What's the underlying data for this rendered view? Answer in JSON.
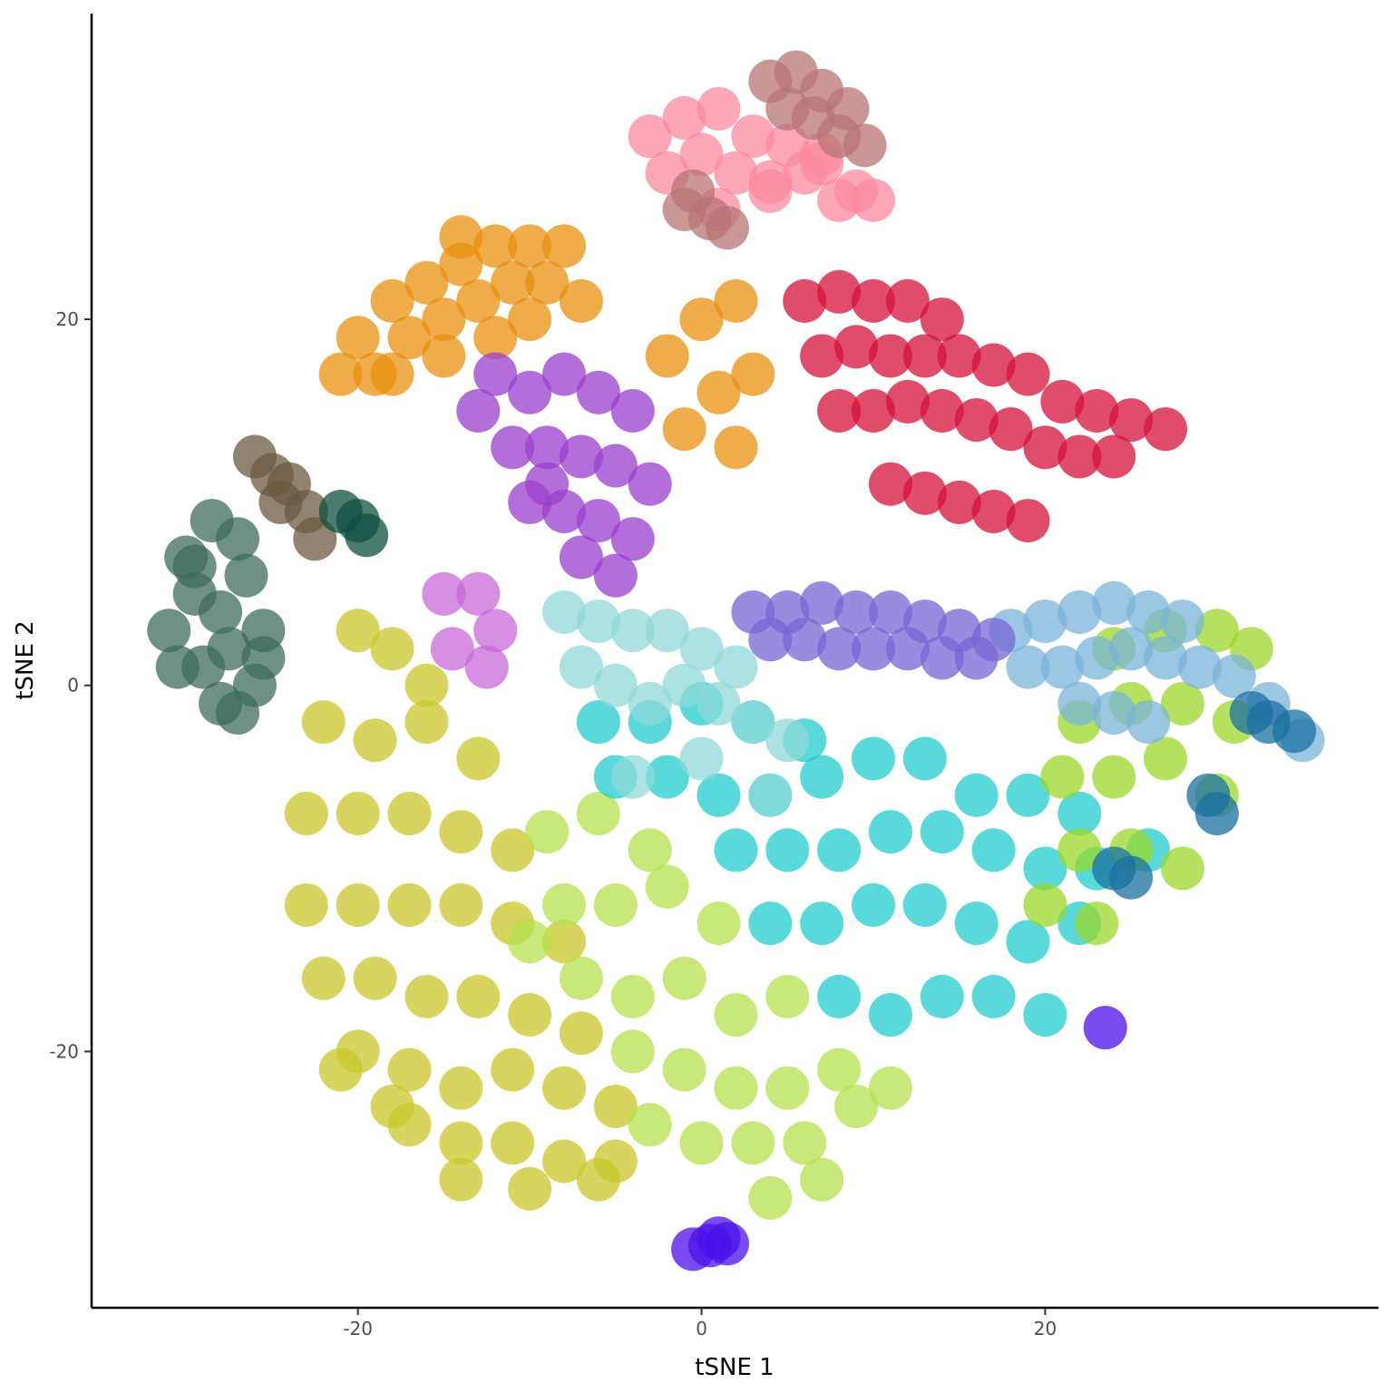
{
  "chart_data": {
    "type": "scatter",
    "x_label": "tSNE 1",
    "y_label": "tSNE 2",
    "xlim": [
      -35.5,
      39.4
    ],
    "ylim": [
      -34.0,
      36.7
    ],
    "xticks": [
      -20,
      0,
      20
    ],
    "yticks": [
      -20,
      0,
      20
    ],
    "grid": false,
    "series": [
      {
        "color": "#c9c72a",
        "x": [
          -20,
          -18,
          -16,
          -22,
          -19,
          -16,
          -13,
          -23,
          -20,
          -17,
          -14,
          -11,
          -23,
          -20,
          -17,
          -14,
          -11,
          -8,
          -22,
          -19,
          -16,
          -13,
          -10,
          -7,
          -20,
          -17,
          -14,
          -11,
          -8,
          -5,
          -17,
          -14,
          -11,
          -8,
          -5,
          -14,
          -10,
          -6,
          -21,
          -18
        ],
        "y": [
          3,
          2,
          0,
          -2,
          -3,
          -2,
          -4,
          -7,
          -7,
          -7,
          -8,
          -9,
          -12,
          -12,
          -12,
          -12,
          -13,
          -14,
          -16,
          -16,
          -17,
          -17,
          -18,
          -19,
          -20,
          -21,
          -22,
          -21,
          -22,
          -23,
          -24,
          -25,
          -25,
          -26,
          -26,
          -27,
          -27.5,
          -27,
          -21,
          -23
        ]
      },
      {
        "color": "#b5e24c",
        "x": [
          -9,
          -6,
          -3,
          -8,
          -5,
          -2,
          1,
          -7,
          -4,
          -1,
          2,
          5,
          -4,
          -1,
          2,
          5,
          8,
          0,
          3,
          6,
          9,
          11,
          4,
          7,
          -10,
          -3
        ],
        "y": [
          -8,
          -7,
          -9,
          -12,
          -12,
          -11,
          -13,
          -16,
          -17,
          -16,
          -18,
          -17,
          -20,
          -21,
          -22,
          -22,
          -21,
          -25,
          -25,
          -25,
          -23,
          -22,
          -28,
          -27,
          -14,
          -24
        ]
      },
      {
        "color": "#22cccc",
        "x": [
          -6,
          -3,
          0,
          3,
          6,
          -5,
          -2,
          1,
          4,
          7,
          10,
          13,
          16,
          19,
          22,
          2,
          5,
          8,
          11,
          14,
          17,
          20,
          23,
          26,
          4,
          7,
          10,
          13,
          16,
          19,
          22,
          8,
          11,
          14,
          17,
          20
        ],
        "y": [
          -2,
          -2,
          -1,
          -2,
          -3,
          -5,
          -5,
          -6,
          -6,
          -5,
          -4,
          -4,
          -6,
          -6,
          -7,
          -9,
          -9,
          -9,
          -8,
          -8,
          -9,
          -10,
          -10,
          -9,
          -13,
          -13,
          -12,
          -12,
          -13,
          -14,
          -13,
          -17,
          -18,
          -17,
          -17,
          -18
        ]
      },
      {
        "color": "#90d8d8",
        "x": [
          -8,
          -6,
          -4,
          -2,
          0,
          2,
          -7,
          -5,
          -3,
          -1,
          1,
          3,
          5,
          -4,
          0,
          4
        ],
        "y": [
          4,
          3.5,
          3,
          3,
          2,
          1,
          1,
          0,
          -1,
          0,
          -1,
          -2,
          -3,
          -5,
          -4,
          -6
        ]
      },
      {
        "color": "#9bd82a",
        "x": [
          24,
          27,
          30,
          32,
          22,
          25,
          28,
          31,
          21,
          24,
          27,
          30,
          22,
          25,
          28,
          20,
          23
        ],
        "y": [
          2,
          3,
          3,
          2,
          -2,
          -1,
          -1,
          -2,
          -5,
          -5,
          -4,
          -6,
          -9,
          -9,
          -10,
          -12,
          -13
        ]
      },
      {
        "color": "#7ab4d8",
        "x": [
          18,
          20,
          22,
          24,
          26,
          28,
          19,
          21,
          23,
          25,
          27,
          29,
          31,
          33,
          35,
          22,
          24,
          26
        ],
        "y": [
          3,
          3.5,
          4,
          4.5,
          4,
          3.5,
          1,
          1,
          1.5,
          2,
          1.5,
          1,
          0.5,
          -1,
          -3,
          -1,
          -1.5,
          -2
        ]
      },
      {
        "color": "#7765d4",
        "x": [
          3,
          5,
          7,
          9,
          11,
          13,
          15,
          17,
          4,
          6,
          8,
          10,
          12,
          14,
          16
        ],
        "y": [
          4,
          4,
          4.5,
          4,
          4,
          3.5,
          3,
          2.5,
          2.5,
          2.5,
          2,
          2,
          2,
          1.5,
          1.5
        ]
      },
      {
        "color": "#1a6fa0",
        "x": [
          32,
          33,
          34.5,
          24,
          25,
          29.5,
          30
        ],
        "y": [
          -1.5,
          -2,
          -2.5,
          -10,
          -10.5,
          -6,
          -7
        ]
      },
      {
        "color": "#3d6b5c",
        "x": [
          -28.5,
          -27,
          -30,
          -29.5,
          -26.5,
          -28,
          -31,
          -25.5,
          -27.5,
          -29,
          -26,
          -30.5,
          -28,
          -27,
          -29.5,
          -25.5
        ],
        "y": [
          9,
          8,
          7,
          5,
          6,
          4,
          3,
          3,
          2,
          1,
          0,
          1,
          -1,
          -1.5,
          6.5,
          1.5
        ]
      },
      {
        "color": "#6b5a40",
        "x": [
          -26,
          -25,
          -24,
          -23,
          -22.5,
          -24.5
        ],
        "y": [
          12.5,
          11.5,
          11,
          9.5,
          8,
          10
        ]
      },
      {
        "color": "#0d5040",
        "x": [
          -21,
          -20,
          -19.5
        ],
        "y": [
          9.5,
          9,
          8.2
        ]
      },
      {
        "color": "#e8900f",
        "x": [
          -20,
          -18,
          -16,
          -14,
          -12,
          -10,
          -8,
          -19,
          -17,
          -15,
          -13,
          -11,
          -9,
          -7,
          -21,
          -18,
          -15,
          -12,
          -2,
          0,
          2,
          1,
          -1,
          3,
          2,
          -14,
          -10
        ],
        "y": [
          19,
          21,
          22,
          23,
          24,
          24,
          24,
          17,
          19,
          20,
          21,
          22,
          22,
          21,
          17,
          17,
          18,
          19,
          18,
          20,
          21,
          16,
          14,
          17,
          13,
          24.5,
          20
        ]
      },
      {
        "color": "#9a3fcc",
        "x": [
          -12,
          -10,
          -8,
          -6,
          -4,
          -11,
          -9,
          -7,
          -5,
          -3,
          -10,
          -8,
          -6,
          -4,
          -7,
          -5,
          -13,
          -9
        ],
        "y": [
          17,
          16,
          17,
          16,
          15,
          13,
          13,
          12.5,
          12,
          11,
          10,
          9.5,
          9,
          8,
          7,
          6,
          15,
          11
        ]
      },
      {
        "color": "#c86ad8",
        "x": [
          -15,
          -13,
          -12,
          -14.5,
          -12.5
        ],
        "y": [
          5,
          5,
          3,
          2,
          1
        ]
      },
      {
        "color": "#d4123a",
        "x": [
          6,
          8,
          10,
          12,
          14,
          7,
          9,
          11,
          13,
          15,
          17,
          19,
          21,
          23,
          25,
          27,
          8,
          10,
          12,
          14,
          16,
          18,
          20,
          22,
          24,
          11,
          13,
          15,
          17,
          19
        ],
        "y": [
          21,
          21.5,
          21,
          21,
          20,
          18,
          18.5,
          18,
          18,
          18,
          17.5,
          17,
          15.5,
          15,
          14.5,
          14,
          15,
          15,
          15.5,
          15,
          14.5,
          14,
          13,
          12.5,
          12.5,
          11,
          10.5,
          10,
          9.5,
          9
        ]
      },
      {
        "color": "#f98aa0",
        "x": [
          -3,
          -1,
          1,
          3,
          5,
          7,
          9,
          0,
          2,
          4,
          6,
          8,
          -2,
          1,
          4,
          7,
          10
        ],
        "y": [
          30,
          31,
          31.5,
          30,
          29.5,
          28.5,
          27,
          29,
          28,
          27.5,
          28,
          26.5,
          28,
          26,
          27,
          29,
          26.5
        ]
      },
      {
        "color": "#b87474",
        "x": [
          4,
          5.5,
          7,
          8.5,
          5,
          6.5,
          8,
          9.5,
          -1,
          0.5,
          1.5,
          -0.5
        ],
        "y": [
          33,
          33.5,
          32.5,
          31.5,
          31.5,
          31,
          30,
          29.5,
          26,
          25.5,
          25,
          27
        ]
      },
      {
        "color": "#4b10e8",
        "x": [
          -0.5,
          0.5,
          1.5,
          1,
          23.5
        ],
        "y": [
          -30.8,
          -30.6,
          -30.5,
          -30.2,
          -18.7
        ]
      }
    ]
  }
}
